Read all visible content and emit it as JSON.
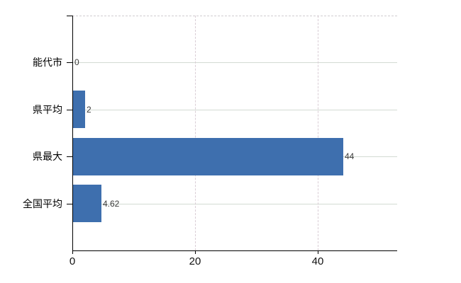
{
  "chart_data": {
    "type": "bar",
    "orientation": "horizontal",
    "title": "",
    "categories": [
      "能代市",
      "県平均",
      "県最大",
      "全国平均"
    ],
    "values": [
      0,
      2,
      44,
      4.62
    ],
    "value_labels": [
      "0",
      "2",
      "44",
      "4.62"
    ],
    "xticks": [
      0,
      20,
      40
    ],
    "xtick_labels": [
      "0",
      "20",
      "40"
    ],
    "xlim": [
      0,
      52.9
    ],
    "grid": true,
    "legend": "none",
    "bar_color": "#3e6fae",
    "gridline_color_horizontal": "#d3dbd3",
    "gridline_color_vertical": "#d9cdd5",
    "plot_border_top_color": "#d0ccd0",
    "axis_color": "#000000",
    "category_label_color": "#000000",
    "value_label_color": "#3a3a3a",
    "tick_label_color": "#111111",
    "background_color": "#ffffff"
  }
}
